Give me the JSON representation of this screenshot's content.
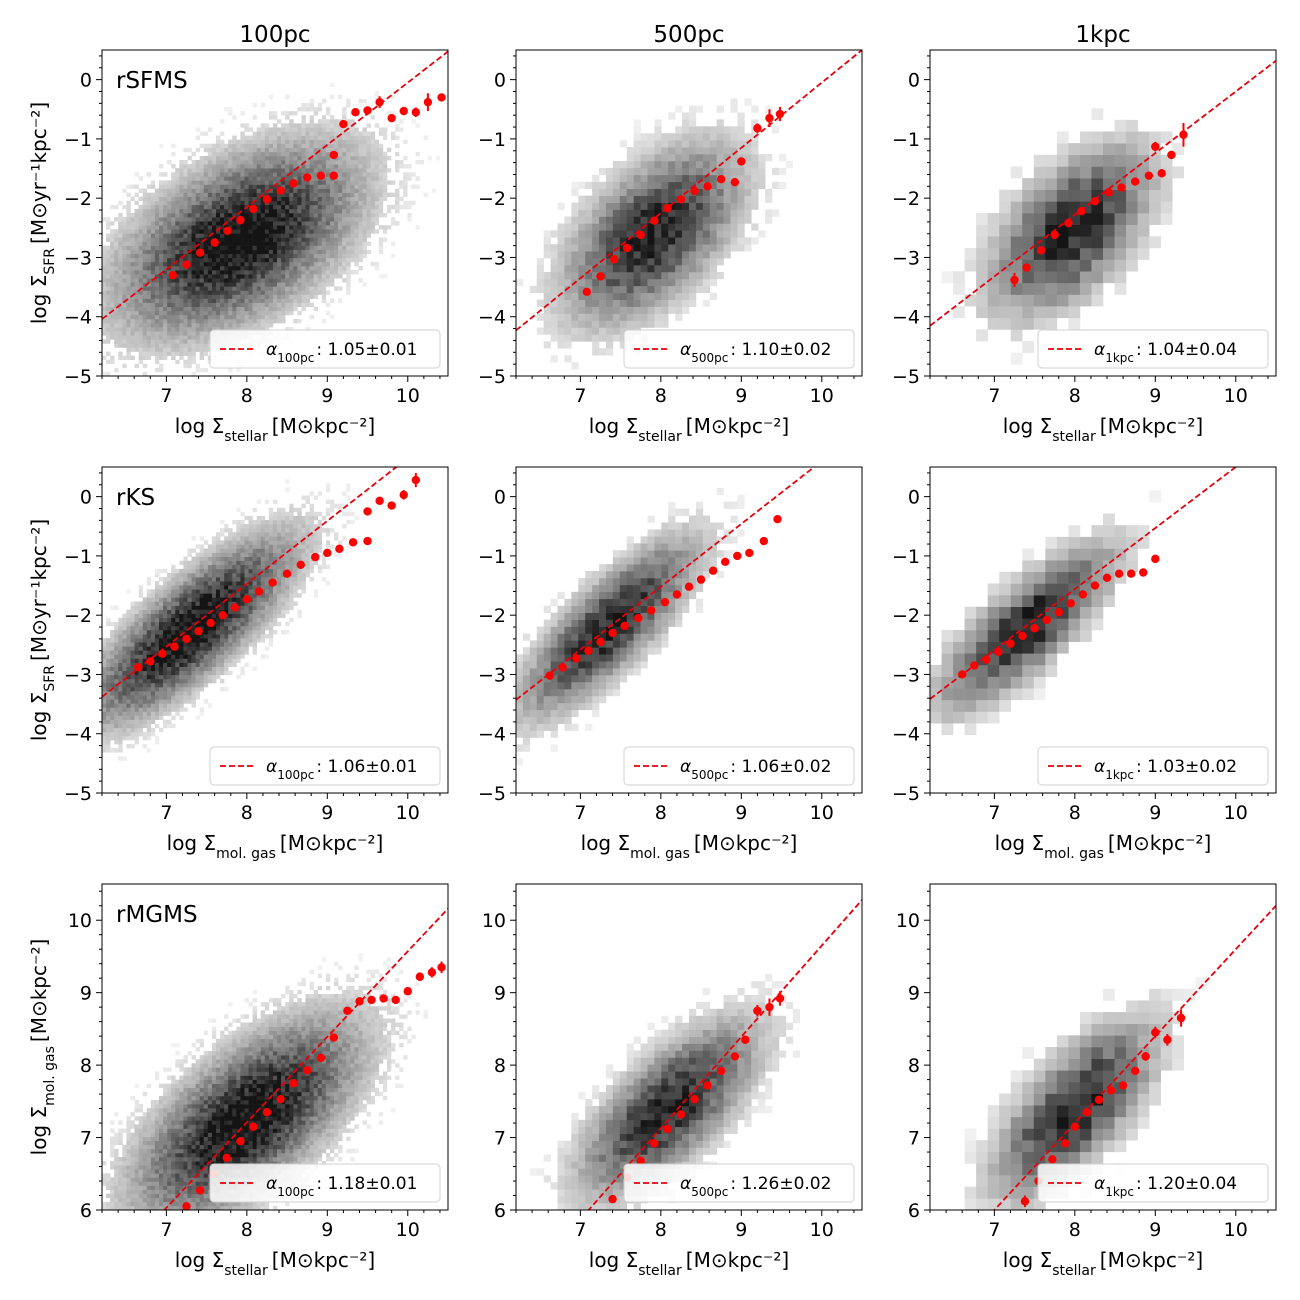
{
  "columns": [
    "100pc",
    "500pc",
    "1kpc"
  ],
  "rows": [
    {
      "label": "rSFMS",
      "xlabel": "log Σ_stellar [M⊙kpc⁻²]",
      "ylabel": "log Σ_SFR [M⊙yr⁻¹kpc⁻²]"
    },
    {
      "label": "rKS",
      "xlabel": "log Σ_mol. gas [M⊙kpc⁻²]",
      "ylabel": "log Σ_SFR [M⊙yr⁻¹kpc⁻²]"
    },
    {
      "label": "rMGMS",
      "xlabel": "log Σ_stellar [M⊙kpc⁻²]",
      "ylabel": "log Σ_mol. gas [M⊙kpc⁻²]"
    }
  ],
  "colors": {
    "fit": "#e8000b",
    "points": "#ff0000",
    "density": "#000000"
  },
  "chart_data": [
    {
      "type": "scatter",
      "row": 0,
      "col": 0,
      "xlim": [
        6.2,
        10.5
      ],
      "ylim": [
        -5,
        0.5
      ],
      "xticks": [
        7,
        8,
        9,
        10
      ],
      "yticks": [
        -5,
        -4,
        -3,
        -2,
        -1,
        0
      ],
      "legend": "lower-right",
      "legend_label": "α_100pc",
      "legend_value": "1.05±0.01",
      "fit": {
        "slope": 1.05,
        "intercept": -10.55
      },
      "density": {
        "cx": 7.9,
        "cy": -2.7,
        "sx": 0.75,
        "sy": 0.8,
        "rho": 0.5,
        "bins": 85,
        "nx": 1.0
      },
      "points": [
        [
          7.08,
          -3.3
        ],
        [
          7.25,
          -3.12
        ],
        [
          7.42,
          -2.92
        ],
        [
          7.6,
          -2.75
        ],
        [
          7.76,
          -2.55
        ],
        [
          7.92,
          -2.37
        ],
        [
          8.08,
          -2.18
        ],
        [
          8.25,
          -2.02
        ],
        [
          8.42,
          -1.87
        ],
        [
          8.58,
          -1.75
        ],
        [
          8.75,
          -1.65
        ],
        [
          8.92,
          -1.62
        ],
        [
          9.08,
          -1.62
        ],
        [
          9.08,
          -1.27
        ],
        [
          9.2,
          -0.75
        ],
        [
          9.35,
          -0.55
        ],
        [
          9.5,
          -0.52
        ],
        [
          9.65,
          -0.38
        ],
        [
          9.8,
          -0.65
        ],
        [
          9.95,
          -0.53
        ],
        [
          10.1,
          -0.55
        ],
        [
          10.25,
          -0.38
        ],
        [
          10.42,
          -0.3
        ]
      ],
      "errors": [
        0.02,
        0.02,
        0.02,
        0.02,
        0.02,
        0.02,
        0.02,
        0.02,
        0.02,
        0.02,
        0.02,
        0.02,
        0.02,
        0.04,
        0.05,
        0.06,
        0.07,
        0.1,
        0.06,
        0.07,
        0.08,
        0.15,
        0.06
      ]
    },
    {
      "type": "scatter",
      "row": 0,
      "col": 1,
      "xlim": [
        6.2,
        10.5
      ],
      "ylim": [
        -5,
        0.5
      ],
      "xticks": [
        7,
        8,
        9,
        10
      ],
      "yticks": [
        -5,
        -4,
        -3,
        -2,
        -1,
        0
      ],
      "legend": "lower-right",
      "legend_label": "α_500pc",
      "legend_value": "1.10±0.02",
      "fit": {
        "slope": 1.1,
        "intercept": -11.05
      },
      "density": {
        "cx": 7.9,
        "cy": -2.6,
        "sx": 0.55,
        "sy": 0.75,
        "rho": 0.55,
        "bins": 50,
        "nx": 0.9
      },
      "points": [
        [
          7.08,
          -3.58
        ],
        [
          7.25,
          -3.32
        ],
        [
          7.42,
          -3.03
        ],
        [
          7.58,
          -2.84
        ],
        [
          7.75,
          -2.62
        ],
        [
          7.92,
          -2.38
        ],
        [
          8.08,
          -2.17
        ],
        [
          8.25,
          -2.02
        ],
        [
          8.42,
          -1.88
        ],
        [
          8.58,
          -1.8
        ],
        [
          8.75,
          -1.68
        ],
        [
          8.92,
          -1.73
        ],
        [
          9.0,
          -1.38
        ],
        [
          9.2,
          -0.82
        ],
        [
          9.35,
          -0.65
        ],
        [
          9.48,
          -0.58
        ]
      ],
      "errors": [
        0.06,
        0.04,
        0.03,
        0.03,
        0.02,
        0.02,
        0.02,
        0.02,
        0.02,
        0.03,
        0.04,
        0.05,
        0.06,
        0.08,
        0.15,
        0.12
      ]
    },
    {
      "type": "scatter",
      "row": 0,
      "col": 2,
      "xlim": [
        6.2,
        10.5
      ],
      "ylim": [
        -5,
        0.5
      ],
      "xticks": [
        7,
        8,
        9,
        10
      ],
      "yticks": [
        -5,
        -4,
        -3,
        -2,
        -1,
        0
      ],
      "legend": "lower-right",
      "legend_label": "α_1kpc",
      "legend_value": "1.04±0.04",
      "fit": {
        "slope": 1.04,
        "intercept": -10.6
      },
      "density": {
        "cx": 7.95,
        "cy": -2.55,
        "sx": 0.5,
        "sy": 0.7,
        "rho": 0.55,
        "bins": 30,
        "nx": 0.9
      },
      "points": [
        [
          7.25,
          -3.38
        ],
        [
          7.4,
          -3.17
        ],
        [
          7.58,
          -2.88
        ],
        [
          7.75,
          -2.62
        ],
        [
          7.92,
          -2.42
        ],
        [
          8.08,
          -2.22
        ],
        [
          8.25,
          -2.05
        ],
        [
          8.42,
          -1.9
        ],
        [
          8.58,
          -1.82
        ],
        [
          8.75,
          -1.72
        ],
        [
          8.92,
          -1.62
        ],
        [
          9.08,
          -1.58
        ],
        [
          9.0,
          -1.13
        ],
        [
          9.2,
          -1.27
        ],
        [
          9.35,
          -0.93
        ]
      ],
      "errors": [
        0.12,
        0.06,
        0.05,
        0.04,
        0.03,
        0.03,
        0.03,
        0.03,
        0.03,
        0.04,
        0.05,
        0.07,
        0.08,
        0.07,
        0.2
      ]
    },
    {
      "type": "scatter",
      "row": 1,
      "col": 0,
      "xlim": [
        6.2,
        10.5
      ],
      "ylim": [
        -5,
        0.5
      ],
      "xticks": [
        7,
        8,
        9,
        10
      ],
      "yticks": [
        -5,
        -4,
        -3,
        -2,
        -1,
        0
      ],
      "legend": "lower-right",
      "legend_label": "α_100pc",
      "legend_value": "1.06±0.01",
      "fit": {
        "slope": 1.06,
        "intercept": -9.95
      },
      "density": {
        "cx": 7.3,
        "cy": -2.25,
        "sx": 0.65,
        "sy": 0.8,
        "rho": 0.8,
        "bins": 85,
        "nx": 1.0
      },
      "points": [
        [
          6.65,
          -2.88
        ],
        [
          6.8,
          -2.78
        ],
        [
          6.95,
          -2.65
        ],
        [
          7.1,
          -2.53
        ],
        [
          7.25,
          -2.4
        ],
        [
          7.4,
          -2.27
        ],
        [
          7.55,
          -2.13
        ],
        [
          7.7,
          -2.0
        ],
        [
          7.85,
          -1.87
        ],
        [
          8.0,
          -1.73
        ],
        [
          8.15,
          -1.6
        ],
        [
          8.32,
          -1.45
        ],
        [
          8.5,
          -1.3
        ],
        [
          8.67,
          -1.15
        ],
        [
          8.85,
          -1.02
        ],
        [
          9.0,
          -0.95
        ],
        [
          9.15,
          -0.88
        ],
        [
          9.32,
          -0.77
        ],
        [
          9.5,
          -0.75
        ],
        [
          9.5,
          -0.25
        ],
        [
          9.65,
          -0.07
        ],
        [
          9.8,
          -0.15
        ],
        [
          9.95,
          0.03
        ],
        [
          10.1,
          0.28
        ]
      ],
      "errors": [
        0.02,
        0.02,
        0.02,
        0.02,
        0.02,
        0.02,
        0.02,
        0.02,
        0.02,
        0.02,
        0.02,
        0.02,
        0.02,
        0.02,
        0.02,
        0.02,
        0.03,
        0.03,
        0.03,
        0.04,
        0.05,
        0.06,
        0.08,
        0.12
      ]
    },
    {
      "type": "scatter",
      "row": 1,
      "col": 1,
      "xlim": [
        6.2,
        10.5
      ],
      "ylim": [
        -5,
        0.5
      ],
      "xticks": [
        7,
        8,
        9,
        10
      ],
      "yticks": [
        -5,
        -4,
        -3,
        -2,
        -1,
        0
      ],
      "legend": "lower-right",
      "legend_label": "α_500pc",
      "legend_value": "1.06±0.02",
      "fit": {
        "slope": 1.06,
        "intercept": -10.0
      },
      "density": {
        "cx": 7.35,
        "cy": -2.2,
        "sx": 0.55,
        "sy": 0.75,
        "rho": 0.8,
        "bins": 50,
        "nx": 0.9
      },
      "points": [
        [
          6.62,
          -3.02
        ],
        [
          6.78,
          -2.88
        ],
        [
          6.95,
          -2.73
        ],
        [
          7.1,
          -2.6
        ],
        [
          7.25,
          -2.45
        ],
        [
          7.4,
          -2.3
        ],
        [
          7.55,
          -2.18
        ],
        [
          7.72,
          -2.05
        ],
        [
          7.88,
          -1.92
        ],
        [
          8.05,
          -1.78
        ],
        [
          8.2,
          -1.65
        ],
        [
          8.35,
          -1.52
        ],
        [
          8.5,
          -1.4
        ],
        [
          8.65,
          -1.25
        ],
        [
          8.8,
          -1.1
        ],
        [
          8.95,
          -1.0
        ],
        [
          9.1,
          -0.95
        ],
        [
          9.28,
          -0.75
        ],
        [
          9.45,
          -0.38
        ]
      ],
      "errors": [
        0.03,
        0.03,
        0.02,
        0.02,
        0.02,
        0.02,
        0.02,
        0.02,
        0.02,
        0.02,
        0.02,
        0.02,
        0.02,
        0.03,
        0.03,
        0.03,
        0.04,
        0.05,
        0.06
      ]
    },
    {
      "type": "scatter",
      "row": 1,
      "col": 2,
      "xlim": [
        6.2,
        10.5
      ],
      "ylim": [
        -5,
        0.5
      ],
      "xticks": [
        7,
        8,
        9,
        10
      ],
      "yticks": [
        -5,
        -4,
        -3,
        -2,
        -1,
        0
      ],
      "legend": "lower-right",
      "legend_label": "α_1kpc",
      "legend_value": "1.03±0.02",
      "fit": {
        "slope": 1.03,
        "intercept": -9.8
      },
      "density": {
        "cx": 7.4,
        "cy": -2.2,
        "sx": 0.55,
        "sy": 0.7,
        "rho": 0.8,
        "bins": 30,
        "nx": 0.9
      },
      "points": [
        [
          6.6,
          -3.0
        ],
        [
          6.75,
          -2.85
        ],
        [
          6.9,
          -2.75
        ],
        [
          7.05,
          -2.62
        ],
        [
          7.2,
          -2.48
        ],
        [
          7.35,
          -2.35
        ],
        [
          7.5,
          -2.22
        ],
        [
          7.65,
          -2.08
        ],
        [
          7.8,
          -1.95
        ],
        [
          7.95,
          -1.8
        ],
        [
          8.1,
          -1.65
        ],
        [
          8.25,
          -1.5
        ],
        [
          8.4,
          -1.37
        ],
        [
          8.55,
          -1.3
        ],
        [
          8.7,
          -1.3
        ],
        [
          8.85,
          -1.28
        ],
        [
          9.0,
          -1.05
        ]
      ],
      "errors": [
        0.05,
        0.04,
        0.04,
        0.03,
        0.03,
        0.03,
        0.03,
        0.03,
        0.03,
        0.03,
        0.03,
        0.03,
        0.04,
        0.04,
        0.05,
        0.05,
        0.06
      ]
    },
    {
      "type": "scatter",
      "row": 2,
      "col": 0,
      "xlim": [
        6.2,
        10.5
      ],
      "ylim": [
        6,
        10.5
      ],
      "xticks": [
        7,
        8,
        9,
        10
      ],
      "yticks": [
        6,
        7,
        8,
        9,
        10
      ],
      "legend": "lower-right",
      "legend_label": "α_100pc",
      "legend_value": "1.18±0.01",
      "fit": {
        "slope": 1.18,
        "intercept": -2.23
      },
      "density": {
        "cx": 8.0,
        "cy": 7.25,
        "sx": 0.7,
        "sy": 0.7,
        "rho": 0.65,
        "bins": 85,
        "nx": 1.0
      },
      "points": [
        [
          7.25,
          6.05
        ],
        [
          7.42,
          6.27
        ],
        [
          7.58,
          6.5
        ],
        [
          7.75,
          6.72
        ],
        [
          7.92,
          6.95
        ],
        [
          8.08,
          7.15
        ],
        [
          8.25,
          7.35
        ],
        [
          8.42,
          7.53
        ],
        [
          8.58,
          7.75
        ],
        [
          8.75,
          7.93
        ],
        [
          8.92,
          8.1
        ],
        [
          9.08,
          8.38
        ],
        [
          9.25,
          8.75
        ],
        [
          9.4,
          8.88
        ],
        [
          9.55,
          8.9
        ],
        [
          9.7,
          8.92
        ],
        [
          9.85,
          8.9
        ],
        [
          10.0,
          9.02
        ],
        [
          10.15,
          9.22
        ],
        [
          10.3,
          9.28
        ],
        [
          10.42,
          9.35
        ]
      ],
      "errors": [
        0.02,
        0.02,
        0.02,
        0.02,
        0.02,
        0.02,
        0.02,
        0.02,
        0.02,
        0.02,
        0.02,
        0.02,
        0.02,
        0.03,
        0.03,
        0.04,
        0.04,
        0.05,
        0.06,
        0.07,
        0.08
      ]
    },
    {
      "type": "scatter",
      "row": 2,
      "col": 1,
      "xlim": [
        6.2,
        10.5
      ],
      "ylim": [
        6,
        10.5
      ],
      "xticks": [
        7,
        8,
        9,
        10
      ],
      "yticks": [
        6,
        7,
        8,
        9,
        10
      ],
      "legend": "lower-right",
      "legend_label": "α_500pc",
      "legend_value": "1.26±0.02",
      "fit": {
        "slope": 1.26,
        "intercept": -2.95
      },
      "density": {
        "cx": 8.1,
        "cy": 7.4,
        "sx": 0.55,
        "sy": 0.6,
        "rho": 0.7,
        "bins": 50,
        "nx": 0.9
      },
      "points": [
        [
          7.4,
          6.15
        ],
        [
          7.58,
          6.45
        ],
        [
          7.75,
          6.68
        ],
        [
          7.92,
          6.92
        ],
        [
          8.08,
          7.12
        ],
        [
          8.25,
          7.32
        ],
        [
          8.42,
          7.53
        ],
        [
          8.58,
          7.72
        ],
        [
          8.75,
          7.92
        ],
        [
          8.92,
          8.12
        ],
        [
          9.05,
          8.35
        ],
        [
          9.2,
          8.75
        ],
        [
          9.35,
          8.8
        ],
        [
          9.48,
          8.92
        ]
      ],
      "errors": [
        0.04,
        0.03,
        0.03,
        0.02,
        0.02,
        0.02,
        0.02,
        0.02,
        0.03,
        0.03,
        0.04,
        0.08,
        0.12,
        0.1
      ]
    },
    {
      "type": "scatter",
      "row": 2,
      "col": 2,
      "xlim": [
        6.2,
        10.5
      ],
      "ylim": [
        6,
        10.5
      ],
      "xticks": [
        7,
        8,
        9,
        10
      ],
      "yticks": [
        6,
        7,
        8,
        9,
        10
      ],
      "legend": "lower-right",
      "legend_label": "α_1kpc",
      "legend_value": "1.20±0.04",
      "fit": {
        "slope": 1.2,
        "intercept": -2.4
      },
      "density": {
        "cx": 8.0,
        "cy": 7.4,
        "sx": 0.5,
        "sy": 0.6,
        "rho": 0.7,
        "bins": 30,
        "nx": 0.9
      },
      "points": [
        [
          7.38,
          6.12
        ],
        [
          7.55,
          6.4
        ],
        [
          7.72,
          6.7
        ],
        [
          7.88,
          6.92
        ],
        [
          8.0,
          7.15
        ],
        [
          8.15,
          7.35
        ],
        [
          8.3,
          7.52
        ],
        [
          8.45,
          7.65
        ],
        [
          8.6,
          7.72
        ],
        [
          8.75,
          7.92
        ],
        [
          8.88,
          8.12
        ],
        [
          9.0,
          8.45
        ],
        [
          9.15,
          8.35
        ],
        [
          9.32,
          8.65
        ]
      ],
      "errors": [
        0.08,
        0.05,
        0.04,
        0.03,
        0.03,
        0.03,
        0.03,
        0.04,
        0.04,
        0.05,
        0.06,
        0.08,
        0.08,
        0.12
      ]
    }
  ]
}
